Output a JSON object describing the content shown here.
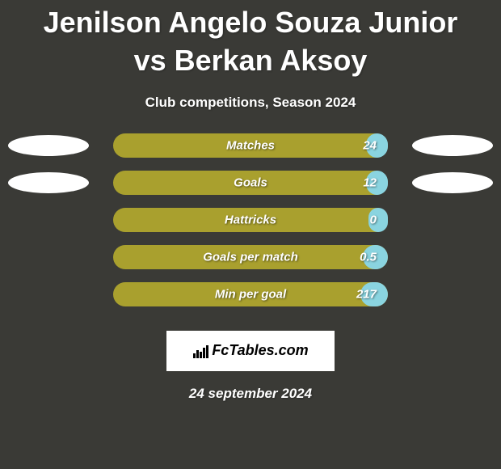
{
  "background_color": "#3a3a36",
  "title": "Jenilson Angelo Souza Junior vs Berkan Aksoy",
  "title_fontsize": 36,
  "subtitle": "Club competitions, Season 2024",
  "subtitle_fontsize": 17,
  "bar_bg_color": "#a9a02e",
  "bar_fill_color": "#8ad4e0",
  "bubble_color": "#ffffff",
  "stats": [
    {
      "label": "Matches",
      "value": "24",
      "fill_percent": 8,
      "show_bubbles": true
    },
    {
      "label": "Goals",
      "value": "12",
      "fill_percent": 8,
      "show_bubbles": true
    },
    {
      "label": "Hattricks",
      "value": "0",
      "fill_percent": 7,
      "show_bubbles": false
    },
    {
      "label": "Goals per match",
      "value": "0.5",
      "fill_percent": 9,
      "show_bubbles": false
    },
    {
      "label": "Min per goal",
      "value": "217",
      "fill_percent": 10,
      "show_bubbles": false
    }
  ],
  "brand": "FcTables.com",
  "date": "24 september 2024"
}
